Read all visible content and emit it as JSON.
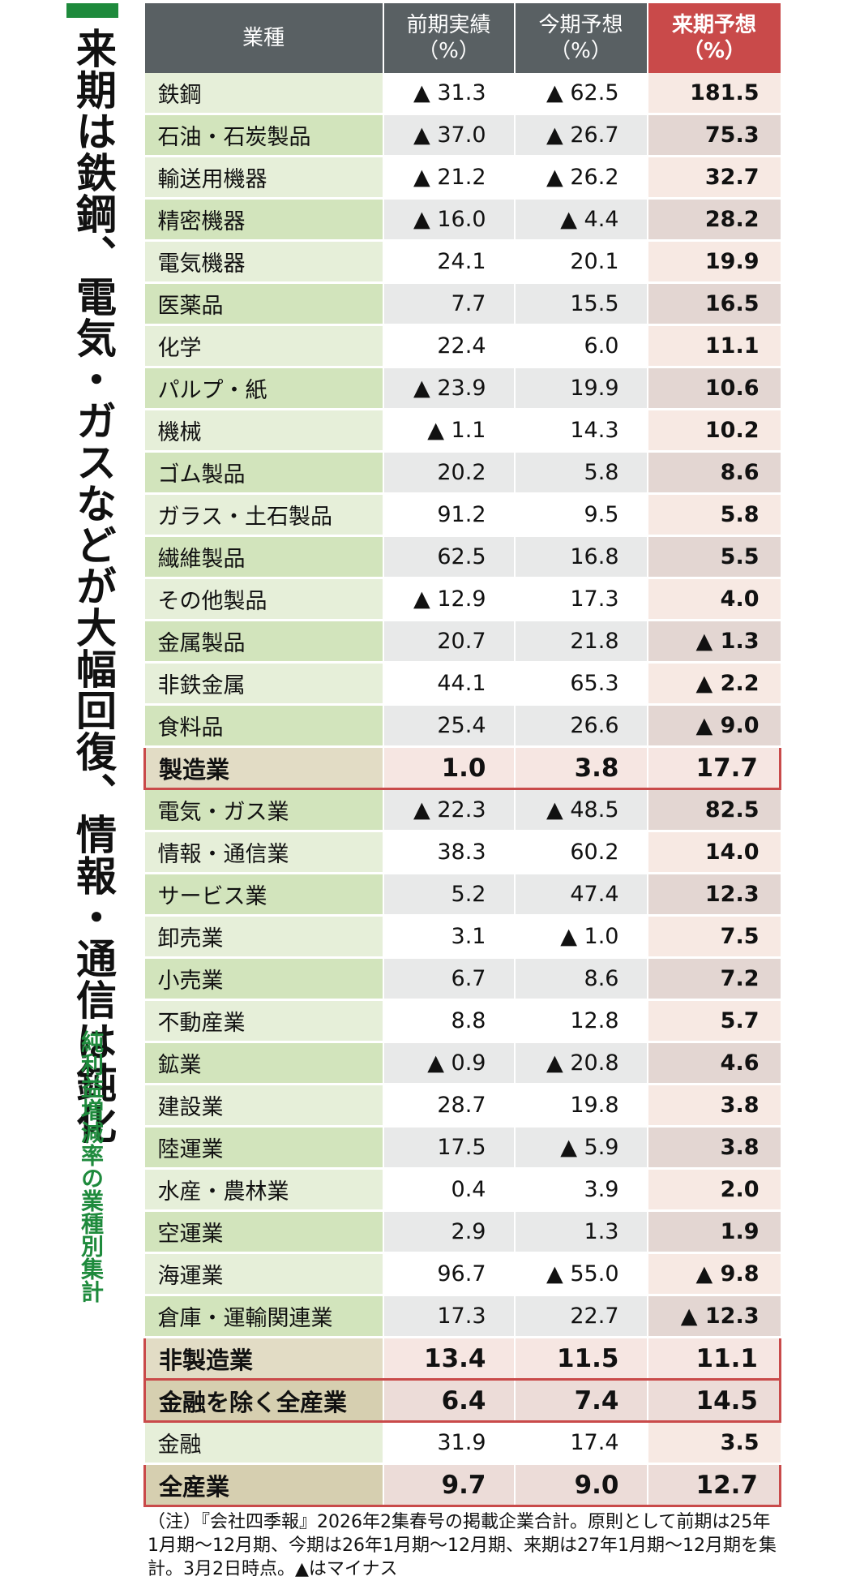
{
  "title": "来期は鉄鋼、電気・ガスなどが大幅回復、情報・通信は鈍化",
  "subtitle": "純利益増減率の業種別集計",
  "headers": {
    "col0": "業種",
    "col1": "前期実績",
    "col2": "今期予想",
    "col3": "来期予想",
    "unit": "（%）"
  },
  "rows": [
    {
      "name": "鉄鋼",
      "prev": "▲ 31.3",
      "curr": "▲ 62.5",
      "next": "181.5"
    },
    {
      "name": "石油・石炭製品",
      "prev": "▲ 37.0",
      "curr": "▲ 26.7",
      "next": "75.3"
    },
    {
      "name": "輸送用機器",
      "prev": "▲ 21.2",
      "curr": "▲ 26.2",
      "next": "32.7"
    },
    {
      "name": "精密機器",
      "prev": "▲ 16.0",
      "curr": "▲ 4.4",
      "next": "28.2"
    },
    {
      "name": "電気機器",
      "prev": "24.1",
      "curr": "20.1",
      "next": "19.9"
    },
    {
      "name": "医薬品",
      "prev": "7.7",
      "curr": "15.5",
      "next": "16.5"
    },
    {
      "name": "化学",
      "prev": "22.4",
      "curr": "6.0",
      "next": "11.1"
    },
    {
      "name": "パルプ・紙",
      "prev": "▲ 23.9",
      "curr": "19.9",
      "next": "10.6"
    },
    {
      "name": "機械",
      "prev": "▲ 1.1",
      "curr": "14.3",
      "next": "10.2"
    },
    {
      "name": "ゴム製品",
      "prev": "20.2",
      "curr": "5.8",
      "next": "8.6"
    },
    {
      "name": "ガラス・土石製品",
      "prev": "91.2",
      "curr": "9.5",
      "next": "5.8"
    },
    {
      "name": "繊維製品",
      "prev": "62.5",
      "curr": "16.8",
      "next": "5.5"
    },
    {
      "name": "その他製品",
      "prev": "▲ 12.9",
      "curr": "17.3",
      "next": "4.0"
    },
    {
      "name": "金属製品",
      "prev": "20.7",
      "curr": "21.8",
      "next": "▲ 1.3"
    },
    {
      "name": "非鉄金属",
      "prev": "44.1",
      "curr": "65.3",
      "next": "▲ 2.2"
    },
    {
      "name": "食料品",
      "prev": "25.4",
      "curr": "26.6",
      "next": "▲ 9.0"
    },
    {
      "name": "製造業",
      "prev": "1.0",
      "curr": "3.8",
      "next": "17.7"
    },
    {
      "name": "電気・ガス業",
      "prev": "▲ 22.3",
      "curr": "▲ 48.5",
      "next": "82.5"
    },
    {
      "name": "情報・通信業",
      "prev": "38.3",
      "curr": "60.2",
      "next": "14.0"
    },
    {
      "name": "サービス業",
      "prev": "5.2",
      "curr": "47.4",
      "next": "12.3"
    },
    {
      "name": "卸売業",
      "prev": "3.1",
      "curr": "▲ 1.0",
      "next": "7.5"
    },
    {
      "name": "小売業",
      "prev": "6.7",
      "curr": "8.6",
      "next": "7.2"
    },
    {
      "name": "不動産業",
      "prev": "8.8",
      "curr": "12.8",
      "next": "5.7"
    },
    {
      "name": "鉱業",
      "prev": "▲ 0.9",
      "curr": "▲ 20.8",
      "next": "4.6"
    },
    {
      "name": "建設業",
      "prev": "28.7",
      "curr": "19.8",
      "next": "3.8"
    },
    {
      "name": "陸運業",
      "prev": "17.5",
      "curr": "▲ 5.9",
      "next": "3.8"
    },
    {
      "name": "水産・農林業",
      "prev": "0.4",
      "curr": "3.9",
      "next": "2.0"
    },
    {
      "name": "空運業",
      "prev": "2.9",
      "curr": "1.3",
      "next": "1.9"
    },
    {
      "name": "海運業",
      "prev": "96.7",
      "curr": "▲ 55.0",
      "next": "▲ 9.8"
    },
    {
      "name": "倉庫・運輸関連業",
      "prev": "17.3",
      "curr": "22.7",
      "next": "▲ 12.3"
    },
    {
      "name": "非製造業",
      "prev": "13.4",
      "curr": "11.5",
      "next": "11.1"
    },
    {
      "name": "金融を除く全産業",
      "prev": "6.4",
      "curr": "7.4",
      "next": "14.5"
    },
    {
      "name": "金融",
      "prev": "31.9",
      "curr": "17.4",
      "next": "3.5"
    },
    {
      "name": "全産業",
      "prev": "9.7",
      "curr": "9.0",
      "next": "12.7"
    }
  ],
  "note": "（注）『会社四季報』2026年2集春号の掲載企業合計。原則として前期は25年1月期〜12月期、今期は26年1月期〜12月期、来期は27年1月期〜12月期を集計。3月2日時点。▲はマイナス"
}
